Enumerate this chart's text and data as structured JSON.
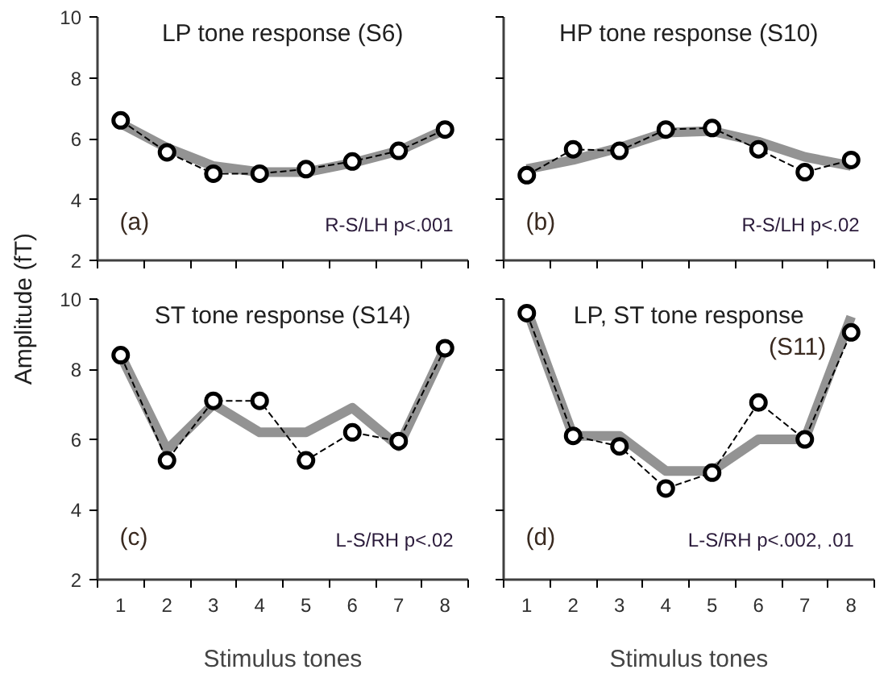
{
  "chart_data": [
    {
      "type": "line",
      "title": "LP tone response (S6)",
      "ylabel": "Amplitude  (fT)",
      "annotations": [
        "(a)",
        "R-S/LH p<.001"
      ],
      "categories": [
        "1",
        "2",
        "3",
        "4",
        "5",
        "6",
        "7",
        "8"
      ],
      "ylim": [
        2,
        10
      ],
      "yticks": [
        2,
        4,
        6,
        8,
        10
      ],
      "tick_labels": "y",
      "grid": false,
      "series": [
        {
          "color": "#808080",
          "marker": "none",
          "line_style": "solid",
          "values": [
            6.5,
            5.7,
            5.1,
            4.9,
            4.9,
            5.2,
            5.6,
            6.3
          ]
        },
        {
          "color": "#000000",
          "marker": "circle",
          "line_style": "dashed",
          "values": [
            6.6,
            5.55,
            4.85,
            4.85,
            5.0,
            5.25,
            5.6,
            6.3
          ]
        }
      ]
    },
    {
      "type": "line",
      "title": "HP tone response (S10)",
      "annotations": [
        "(b)",
        "R-S/LH p<.02"
      ],
      "categories": [
        "1",
        "2",
        "3",
        "4",
        "5",
        "6",
        "7",
        "8"
      ],
      "ylim": [
        2,
        10
      ],
      "yticks": [
        2,
        4,
        6,
        8,
        10
      ],
      "tick_labels": false,
      "grid": false,
      "series": [
        {
          "color": "#808080",
          "marker": "none",
          "line_style": "solid",
          "values": [
            5.0,
            5.3,
            5.7,
            6.2,
            6.25,
            5.9,
            5.4,
            5.1
          ]
        },
        {
          "color": "#000000",
          "marker": "circle",
          "line_style": "dashed",
          "values": [
            4.8,
            5.65,
            5.6,
            6.3,
            6.35,
            5.65,
            4.9,
            5.3
          ]
        }
      ]
    },
    {
      "type": "line",
      "title": "ST tone response (S14)",
      "xlabel": "Stimulus tones",
      "annotations": [
        "(c)",
        "L-S/RH p<.02"
      ],
      "categories": [
        "1",
        "2",
        "3",
        "4",
        "5",
        "6",
        "7",
        "8"
      ],
      "ylim": [
        2,
        10
      ],
      "yticks": [
        2,
        4,
        6,
        8,
        10
      ],
      "grid": false,
      "series": [
        {
          "color": "#808080",
          "marker": "none",
          "line_style": "solid",
          "values": [
            8.4,
            5.7,
            7.0,
            6.2,
            6.2,
            6.9,
            5.8,
            8.6
          ]
        },
        {
          "color": "#000000",
          "marker": "circle",
          "line_style": "dashed",
          "values": [
            8.4,
            5.4,
            7.1,
            7.1,
            5.4,
            6.2,
            5.95,
            8.6
          ]
        }
      ]
    },
    {
      "type": "line",
      "title": "LP, ST tone response",
      "xlabel": "Stimulus tones",
      "annotations": [
        "(d)",
        "L-S/RH p<.002,  .01",
        "(S11)"
      ],
      "categories": [
        "1",
        "2",
        "3",
        "4",
        "5",
        "6",
        "7",
        "8"
      ],
      "ylim": [
        2,
        10
      ],
      "yticks": [
        2,
        4,
        6,
        8,
        10
      ],
      "tick_labels": "x",
      "grid": false,
      "series": [
        {
          "color": "#808080",
          "marker": "none",
          "line_style": "solid",
          "values": [
            9.7,
            6.1,
            6.1,
            5.1,
            5.1,
            6.0,
            6.0,
            9.5
          ]
        },
        {
          "color": "#000000",
          "marker": "circle",
          "line_style": "dashed",
          "values": [
            9.6,
            6.1,
            5.8,
            4.6,
            5.05,
            7.05,
            6.0,
            9.05
          ]
        }
      ]
    }
  ]
}
